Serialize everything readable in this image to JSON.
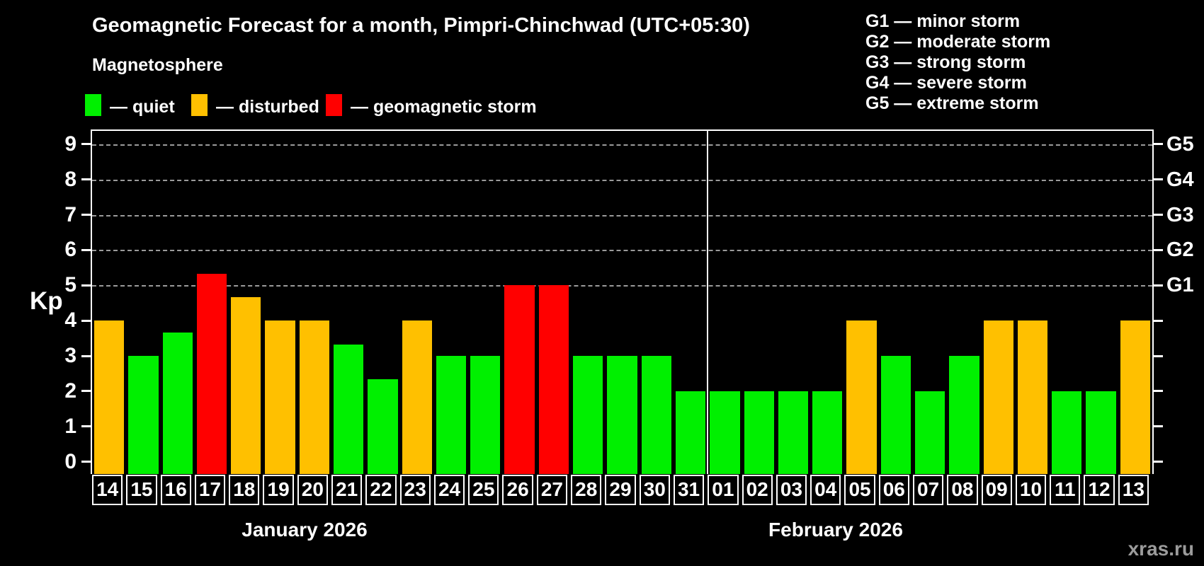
{
  "title": "Geomagnetic Forecast for a month, Pimpri-Chinchwad (UTC+05:30)",
  "subtitle": "Magnetosphere",
  "watermark": "xras.ru",
  "legend": {
    "quiet": "— quiet",
    "disturbed": "— disturbed",
    "storm": "— geomagnetic storm"
  },
  "g_scale": [
    "G1 — minor storm",
    "G2 — moderate storm",
    "G3 — strong storm",
    "G4 — severe storm",
    "G5 — extreme storm"
  ],
  "colors": {
    "quiet": "#00f000",
    "disturbed": "#ffc000",
    "storm": "#ff0000",
    "grid": "#9b9b9b",
    "axis": "#ffffff",
    "background": "#000000"
  },
  "chart_data": {
    "type": "bar",
    "title": "Geomagnetic Forecast for a month, Pimpri-Chinchwad (UTC+05:30)",
    "ylabel": "Kp",
    "ylim": [
      0,
      9
    ],
    "yticks": [
      0,
      1,
      2,
      3,
      4,
      5,
      6,
      7,
      8,
      9
    ],
    "gridlines_kp": [
      5,
      6,
      7,
      8,
      9
    ],
    "grid_style": "dashed",
    "legend_position": "top-left",
    "right_axis": [
      {
        "kp": 5,
        "label": "G1"
      },
      {
        "kp": 6,
        "label": "G2"
      },
      {
        "kp": 7,
        "label": "G3"
      },
      {
        "kp": 8,
        "label": "G4"
      },
      {
        "kp": 9,
        "label": "G5"
      }
    ],
    "months": [
      {
        "label": "January 2026",
        "days": [
          {
            "day": "14",
            "kp": 4.0,
            "status": "disturbed"
          },
          {
            "day": "15",
            "kp": 3.0,
            "status": "quiet"
          },
          {
            "day": "16",
            "kp": 3.67,
            "status": "quiet"
          },
          {
            "day": "17",
            "kp": 5.33,
            "status": "storm"
          },
          {
            "day": "18",
            "kp": 4.67,
            "status": "disturbed"
          },
          {
            "day": "19",
            "kp": 4.0,
            "status": "disturbed"
          },
          {
            "day": "20",
            "kp": 4.0,
            "status": "disturbed"
          },
          {
            "day": "21",
            "kp": 3.33,
            "status": "quiet"
          },
          {
            "day": "22",
            "kp": 2.33,
            "status": "quiet"
          },
          {
            "day": "23",
            "kp": 4.0,
            "status": "disturbed"
          },
          {
            "day": "24",
            "kp": 3.0,
            "status": "quiet"
          },
          {
            "day": "25",
            "kp": 3.0,
            "status": "quiet"
          },
          {
            "day": "26",
            "kp": 5.0,
            "status": "storm"
          },
          {
            "day": "27",
            "kp": 5.0,
            "status": "storm"
          },
          {
            "day": "28",
            "kp": 3.0,
            "status": "quiet"
          },
          {
            "day": "29",
            "kp": 3.0,
            "status": "quiet"
          },
          {
            "day": "30",
            "kp": 3.0,
            "status": "quiet"
          },
          {
            "day": "31",
            "kp": 2.0,
            "status": "quiet"
          }
        ]
      },
      {
        "label": "February 2026",
        "days": [
          {
            "day": "01",
            "kp": 2.0,
            "status": "quiet"
          },
          {
            "day": "02",
            "kp": 2.0,
            "status": "quiet"
          },
          {
            "day": "03",
            "kp": 2.0,
            "status": "quiet"
          },
          {
            "day": "04",
            "kp": 2.0,
            "status": "quiet"
          },
          {
            "day": "05",
            "kp": 4.0,
            "status": "disturbed"
          },
          {
            "day": "06",
            "kp": 3.0,
            "status": "quiet"
          },
          {
            "day": "07",
            "kp": 2.0,
            "status": "quiet"
          },
          {
            "day": "08",
            "kp": 3.0,
            "status": "quiet"
          },
          {
            "day": "09",
            "kp": 4.0,
            "status": "disturbed"
          },
          {
            "day": "10",
            "kp": 4.0,
            "status": "disturbed"
          },
          {
            "day": "11",
            "kp": 2.0,
            "status": "quiet"
          },
          {
            "day": "12",
            "kp": 2.0,
            "status": "quiet"
          },
          {
            "day": "13",
            "kp": 4.0,
            "status": "disturbed"
          }
        ]
      }
    ]
  }
}
